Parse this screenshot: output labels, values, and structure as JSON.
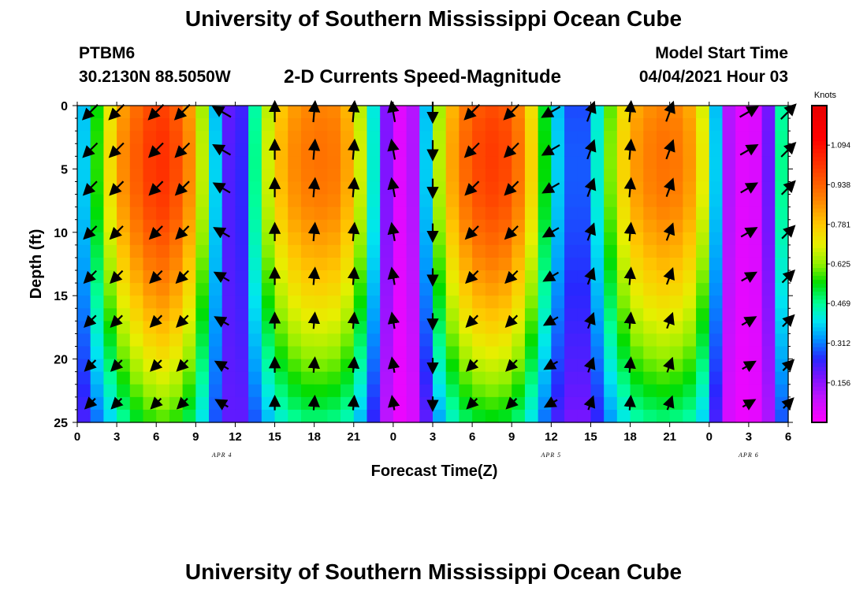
{
  "page": {
    "title_top": "University of Southern Mississippi Ocean Cube",
    "title_bottom": "University of Southern Mississippi Ocean Cube",
    "station": "PTBM6",
    "coords": "30.2130N  88.5050W",
    "plot_title": "2-D Currents Speed-Magnitude",
    "model_start_label": "Model Start Time",
    "model_start_value": "04/04/2021 Hour 03"
  },
  "chart_data": {
    "type": "heatmap",
    "title": "2-D Currents Speed-Magnitude",
    "xlabel": "Forecast Time(Z)",
    "ylabel": "Depth (ft)",
    "x_range_hours": [
      0,
      54
    ],
    "x_tick_labels": [
      "0",
      "3",
      "6",
      "9",
      "12",
      "15",
      "18",
      "21",
      "0",
      "3",
      "6",
      "9",
      "12",
      "15",
      "18",
      "21",
      "0",
      "3",
      "6"
    ],
    "date_labels": [
      {
        "text": "APR 4",
        "hour": 11
      },
      {
        "text": "APR 5",
        "hour": 36
      },
      {
        "text": "APR 6",
        "hour": 51
      }
    ],
    "y_range_ft": [
      0,
      25
    ],
    "y_ticks": [
      0,
      5,
      10,
      15,
      20,
      25
    ],
    "colorbar": {
      "unit": "Knots",
      "range": [
        0,
        1.25
      ],
      "tick_labels": [
        "1.094",
        "0.938",
        "0.781",
        "0.625",
        "0.469",
        "0.312",
        "0.156"
      ],
      "tick_values": [
        1.094,
        0.938,
        0.781,
        0.625,
        0.469,
        0.312,
        0.156
      ]
    },
    "speed_profile_by_column": {
      "hours": [
        0,
        1,
        2,
        3,
        4,
        5,
        6,
        7,
        8,
        9,
        10,
        11,
        12,
        13,
        14,
        15,
        16,
        17,
        18,
        19,
        20,
        21,
        22,
        23,
        24,
        25,
        26,
        27,
        28,
        29,
        30,
        31,
        32,
        33,
        34,
        35,
        36,
        37,
        38,
        39,
        40,
        41,
        42,
        43,
        44,
        45,
        46,
        47,
        48,
        49,
        50,
        51,
        52,
        53,
        54
      ],
      "surface_speed_knots": [
        0.4,
        0.6,
        0.78,
        0.92,
        1.0,
        1.06,
        1.08,
        1.03,
        0.92,
        0.7,
        0.4,
        0.22,
        0.25,
        0.5,
        0.72,
        0.85,
        0.92,
        0.95,
        0.96,
        0.95,
        0.88,
        0.72,
        0.45,
        0.18,
        0.05,
        0.12,
        0.4,
        0.7,
        0.88,
        0.98,
        1.04,
        1.06,
        1.04,
        0.96,
        0.8,
        0.58,
        0.4,
        0.3,
        0.3,
        0.45,
        0.65,
        0.8,
        0.9,
        0.94,
        0.96,
        0.95,
        0.9,
        0.75,
        0.4,
        0.12,
        0.05,
        0.06,
        0.2,
        0.5,
        0.88
      ],
      "bottom_speed_knots": [
        0.22,
        0.3,
        0.38,
        0.46,
        0.52,
        0.56,
        0.58,
        0.56,
        0.5,
        0.4,
        0.28,
        0.2,
        0.2,
        0.28,
        0.36,
        0.42,
        0.46,
        0.48,
        0.48,
        0.47,
        0.44,
        0.36,
        0.24,
        0.1,
        0.03,
        0.06,
        0.2,
        0.34,
        0.43,
        0.49,
        0.52,
        0.53,
        0.52,
        0.48,
        0.4,
        0.3,
        0.22,
        0.18,
        0.18,
        0.24,
        0.33,
        0.4,
        0.45,
        0.47,
        0.48,
        0.47,
        0.45,
        0.38,
        0.22,
        0.06,
        0.03,
        0.04,
        0.12,
        0.28,
        0.44
      ]
    },
    "current_directions_deg_by_column": {
      "hours": [
        1,
        3,
        6,
        8,
        11,
        15,
        18,
        21,
        24,
        27,
        30,
        33,
        36,
        39,
        42,
        45,
        51,
        54
      ],
      "direction_deg": [
        225,
        225,
        225,
        225,
        300,
        0,
        5,
        5,
        350,
        180,
        225,
        225,
        240,
        20,
        5,
        20,
        60,
        45
      ]
    }
  }
}
